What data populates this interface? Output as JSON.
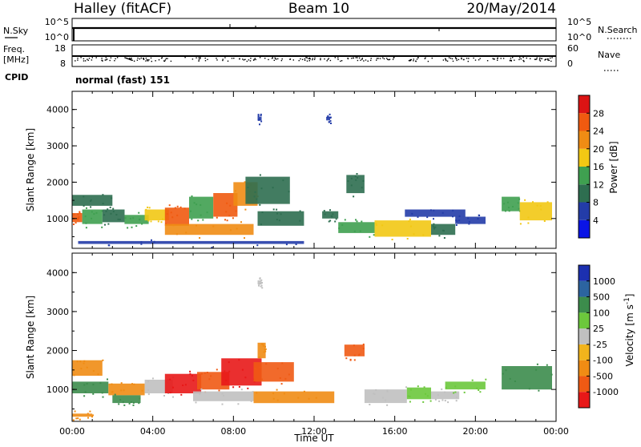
{
  "header": {
    "station": "Halley (fitACF)",
    "beam": "Beam 10",
    "date": "20/May/2014"
  },
  "status_panels": {
    "nsky_label": "N.Sky",
    "nsky_ticks": [
      "10^5",
      "10^0"
    ],
    "nsearch_label": "N.Search",
    "nsearch_ticks": [
      "10^5",
      "10^0"
    ],
    "freq_label": "Freq.",
    "freq_unit": "[MHz]",
    "freq_ticks": [
      "18",
      "8"
    ],
    "nave_label": "Nave",
    "nave_ticks": [
      "60",
      "0"
    ],
    "cpid_label": "CPID",
    "cpid_value": "normal (fast) 151"
  },
  "colors": {
    "power_scale": [
      "#0a14e6",
      "#233ca8",
      "#2e6e50",
      "#3fa050",
      "#f2c814",
      "#f08c14",
      "#f05a10",
      "#dc1414"
    ],
    "velocity_scale": [
      "#e81818",
      "#f05a14",
      "#f08c14",
      "#f2b41c",
      "#c0c0c0",
      "#6cc83c",
      "#3c8c4c",
      "#2c64a0",
      "#1c30b0"
    ]
  },
  "chart_data": [
    {
      "type": "heatmap",
      "quantity": "Power",
      "ylabel": "Slant Range [km]",
      "yticks": [
        "4000",
        "3000",
        "2000",
        "1000"
      ],
      "ylim": [
        180,
        4500
      ],
      "xlim": [
        "00:00",
        "24:00"
      ],
      "colorbar_label": "Power [dB]",
      "colorbar_ticks": [
        "28",
        "24",
        "20",
        "16",
        "12",
        "8",
        "4"
      ],
      "colorbar_range": [
        0,
        32
      ],
      "patches": [
        {
          "t0": 0.0,
          "t1": 0.5,
          "r0": 900,
          "r1": 1150,
          "value": 24
        },
        {
          "t0": 0.5,
          "t1": 1.5,
          "r0": 850,
          "r1": 1250,
          "value": 14
        },
        {
          "t0": 1.5,
          "t1": 2.6,
          "r0": 900,
          "r1": 1250,
          "value": 10
        },
        {
          "t0": 0.0,
          "t1": 2.0,
          "r0": 1350,
          "r1": 1650,
          "value": 8
        },
        {
          "t0": 2.6,
          "t1": 3.8,
          "r0": 850,
          "r1": 1100,
          "value": 13
        },
        {
          "t0": 3.6,
          "t1": 4.8,
          "r0": 950,
          "r1": 1250,
          "value": 18
        },
        {
          "t0": 4.6,
          "t1": 5.8,
          "r0": 800,
          "r1": 1300,
          "value": 24
        },
        {
          "t0": 5.8,
          "t1": 7.0,
          "r0": 1000,
          "r1": 1600,
          "value": 14
        },
        {
          "t0": 7.0,
          "t1": 8.2,
          "r0": 1050,
          "r1": 1700,
          "value": 26
        },
        {
          "t0": 8.0,
          "t1": 9.2,
          "r0": 1350,
          "r1": 2000,
          "value": 20
        },
        {
          "t0": 8.6,
          "t1": 10.8,
          "r0": 1400,
          "r1": 2150,
          "value": 10
        },
        {
          "t0": 9.2,
          "t1": 11.5,
          "r0": 800,
          "r1": 1200,
          "value": 8
        },
        {
          "t0": 4.6,
          "t1": 9.0,
          "r0": 550,
          "r1": 850,
          "value": 22
        },
        {
          "t0": 0.3,
          "t1": 11.5,
          "r0": 300,
          "r1": 380,
          "value": 6
        },
        {
          "t0": 12.4,
          "t1": 13.2,
          "r0": 1000,
          "r1": 1200,
          "value": 10
        },
        {
          "t0": 13.6,
          "t1": 14.5,
          "r0": 1700,
          "r1": 2200,
          "value": 8
        },
        {
          "t0": 13.2,
          "t1": 15.0,
          "r0": 600,
          "r1": 900,
          "value": 14
        },
        {
          "t0": 15.0,
          "t1": 17.8,
          "r0": 500,
          "r1": 950,
          "value": 17
        },
        {
          "t0": 17.8,
          "t1": 19.0,
          "r0": 550,
          "r1": 850,
          "value": 8
        },
        {
          "t0": 16.5,
          "t1": 19.5,
          "r0": 1050,
          "r1": 1250,
          "value": 6
        },
        {
          "t0": 19.0,
          "t1": 20.5,
          "r0": 850,
          "r1": 1050,
          "value": 6
        },
        {
          "t0": 21.3,
          "t1": 22.2,
          "r0": 1200,
          "r1": 1600,
          "value": 13
        },
        {
          "t0": 22.2,
          "t1": 23.8,
          "r0": 950,
          "r1": 1450,
          "value": 17
        },
        {
          "t0": 9.2,
          "t1": 9.4,
          "r0": 3700,
          "r1": 3800,
          "value": 4
        },
        {
          "t0": 12.6,
          "t1": 12.8,
          "r0": 3700,
          "r1": 3800,
          "value": 4
        }
      ]
    },
    {
      "type": "heatmap",
      "quantity": "Velocity",
      "ylabel": "Slant Range [km]",
      "yticks": [
        "4000",
        "3000",
        "2000",
        "1000"
      ],
      "ylim": [
        180,
        4500
      ],
      "xlim": [
        "00:00",
        "24:00"
      ],
      "xticks": [
        "00:00",
        "04:00",
        "08:00",
        "12:00",
        "16:00",
        "20:00",
        "00:00"
      ],
      "xlabel": "Time UT",
      "colorbar_label": "Velocity [m s^-1]",
      "colorbar_ticks": [
        "1000",
        "500",
        "100",
        "25",
        "-25",
        "-100",
        "-500",
        "-1000"
      ],
      "patches": [
        {
          "t0": 0.0,
          "t1": 1.8,
          "r0": 900,
          "r1": 1200,
          "value": 100
        },
        {
          "t0": 0.0,
          "t1": 1.5,
          "r0": 1350,
          "r1": 1750,
          "value": -100
        },
        {
          "t0": 1.8,
          "t1": 3.6,
          "r0": 850,
          "r1": 1150,
          "value": -50
        },
        {
          "t0": 2.0,
          "t1": 3.4,
          "r0": 650,
          "r1": 850,
          "value": 300
        },
        {
          "t0": 3.6,
          "t1": 5.0,
          "r0": 900,
          "r1": 1250,
          "value": 0
        },
        {
          "t0": 4.6,
          "t1": 6.4,
          "r0": 900,
          "r1": 1400,
          "value": -700
        },
        {
          "t0": 6.2,
          "t1": 7.8,
          "r0": 1000,
          "r1": 1450,
          "value": -300
        },
        {
          "t0": 7.4,
          "t1": 9.4,
          "r0": 1100,
          "r1": 1800,
          "value": -800
        },
        {
          "t0": 9.0,
          "t1": 11.0,
          "r0": 1200,
          "r1": 1700,
          "value": -300
        },
        {
          "t0": 9.2,
          "t1": 9.6,
          "r0": 1800,
          "r1": 2200,
          "value": -100
        },
        {
          "t0": 6.0,
          "t1": 9.0,
          "r0": 700,
          "r1": 950,
          "value": 0
        },
        {
          "t0": 9.0,
          "t1": 13.0,
          "r0": 650,
          "r1": 950,
          "value": -80
        },
        {
          "t0": 13.5,
          "t1": 14.5,
          "r0": 1850,
          "r1": 2150,
          "value": -200
        },
        {
          "t0": 14.5,
          "t1": 16.6,
          "r0": 650,
          "r1": 1000,
          "value": 0
        },
        {
          "t0": 16.6,
          "t1": 17.8,
          "r0": 750,
          "r1": 1050,
          "value": 80
        },
        {
          "t0": 17.8,
          "t1": 19.2,
          "r0": 750,
          "r1": 950,
          "value": 0
        },
        {
          "t0": 18.5,
          "t1": 20.5,
          "r0": 1000,
          "r1": 1200,
          "value": 60
        },
        {
          "t0": 21.3,
          "t1": 23.8,
          "r0": 1000,
          "r1": 1600,
          "value": 100
        },
        {
          "t0": 0.0,
          "t1": 1.0,
          "r0": 300,
          "r1": 380,
          "value": -100
        },
        {
          "t0": 9.2,
          "t1": 9.4,
          "r0": 3700,
          "r1": 3800,
          "value": 0
        }
      ]
    }
  ]
}
